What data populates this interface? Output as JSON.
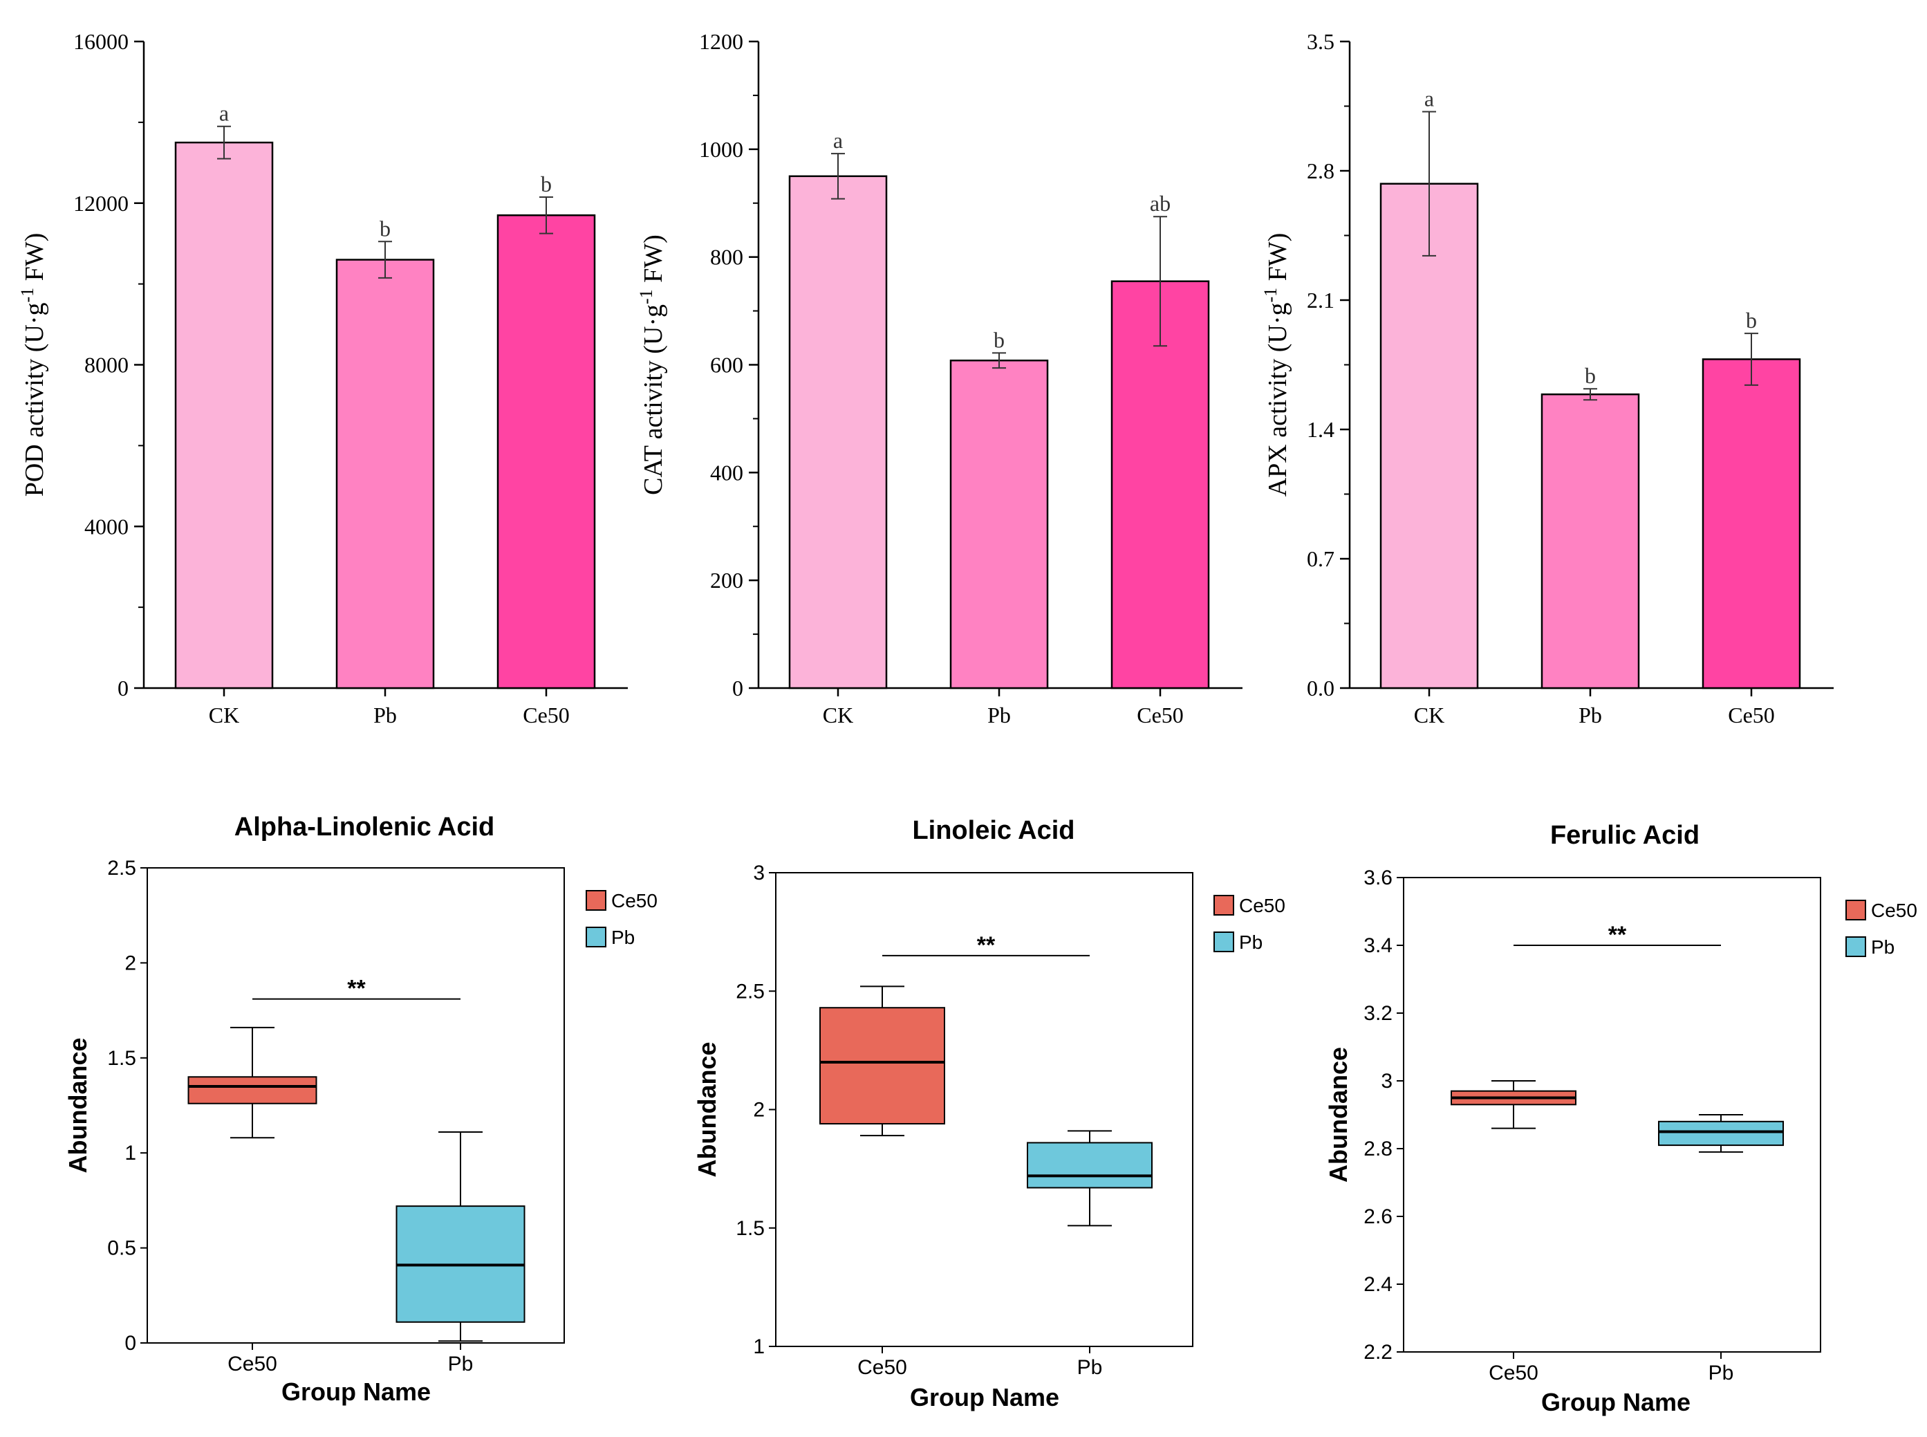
{
  "chart_data": [
    {
      "type": "bar",
      "title": "",
      "xlabel": "",
      "ylabel_prefix": "POD activity (U·g",
      "ylabel_sup": "-1",
      "ylabel_suffix": " FW)",
      "categories": [
        "CK",
        "Pb",
        "Ce50"
      ],
      "values": [
        13500,
        10600,
        11700
      ],
      "errors": [
        400,
        450,
        450
      ],
      "letters": [
        "a",
        "b",
        "b"
      ],
      "yticks": [
        "0",
        "4000",
        "8000",
        "12000",
        "16000"
      ],
      "ytick_values": [
        0,
        4000,
        8000,
        12000,
        16000
      ],
      "ylim": [
        0,
        16000
      ],
      "colors": [
        "#fcb3d9",
        "#ff82c2",
        "#ff44a3"
      ]
    },
    {
      "type": "bar",
      "title": "",
      "xlabel": "",
      "ylabel_prefix": "CAT activity (U·g",
      "ylabel_sup": "-1",
      "ylabel_suffix": " FW)",
      "categories": [
        "CK",
        "Pb",
        "Ce50"
      ],
      "values": [
        950,
        608,
        755
      ],
      "errors": [
        42,
        14,
        120
      ],
      "letters": [
        "a",
        "b",
        "ab"
      ],
      "yticks": [
        "0",
        "200",
        "400",
        "600",
        "800",
        "1000",
        "1200"
      ],
      "ytick_values": [
        0,
        200,
        400,
        600,
        800,
        1000,
        1200
      ],
      "ylim": [
        0,
        1200
      ],
      "colors": [
        "#fcb3d9",
        "#ff82c2",
        "#ff44a3"
      ]
    },
    {
      "type": "bar",
      "title": "",
      "xlabel": "",
      "ylabel_prefix": "APX activity (U·g",
      "ylabel_sup": "-1",
      "ylabel_suffix": " FW)",
      "categories": [
        "CK",
        "Pb",
        "Ce50"
      ],
      "values": [
        2.73,
        1.59,
        1.78
      ],
      "errors": [
        0.39,
        0.03,
        0.14
      ],
      "letters": [
        "a",
        "b",
        "b"
      ],
      "yticks": [
        "0.0",
        "0.7",
        "1.4",
        "2.1",
        "2.8",
        "3.5"
      ],
      "ytick_values": [
        0,
        0.7,
        1.4,
        2.1,
        2.8,
        3.5
      ],
      "ylim": [
        0,
        3.5
      ],
      "colors": [
        "#fcb3d9",
        "#ff82c2",
        "#ff44a3"
      ]
    },
    {
      "type": "box",
      "title": "Alpha-Linolenic Acid",
      "xlabel": "Group Name",
      "ylabel": "Abundance",
      "categories": [
        "Ce50",
        "Pb"
      ],
      "boxes": [
        {
          "min": 1.08,
          "q1": 1.26,
          "median": 1.35,
          "q3": 1.4,
          "max": 1.66
        },
        {
          "min": 0.01,
          "q1": 0.11,
          "median": 0.41,
          "q3": 0.72,
          "max": 1.11
        }
      ],
      "significance": "**",
      "sig_y": 1.81,
      "yticks": [
        "0",
        "0.5",
        "1",
        "1.5",
        "2",
        "2.5"
      ],
      "ytick_values": [
        0,
        0.5,
        1,
        1.5,
        2,
        2.5
      ],
      "ylim": [
        0,
        2.5
      ],
      "legend": [
        "Ce50",
        "Pb"
      ],
      "colors": [
        "#e8695a",
        "#6ec8dc"
      ]
    },
    {
      "type": "box",
      "title": "Linoleic Acid",
      "xlabel": "Group Name",
      "ylabel": "Abundance",
      "categories": [
        "Ce50",
        "Pb"
      ],
      "boxes": [
        {
          "min": 1.89,
          "q1": 1.94,
          "median": 2.2,
          "q3": 2.43,
          "max": 2.52
        },
        {
          "min": 1.51,
          "q1": 1.67,
          "median": 1.72,
          "q3": 1.86,
          "max": 1.91
        }
      ],
      "significance": "**",
      "sig_y": 2.65,
      "yticks": [
        "1",
        "1.5",
        "2",
        "2.5",
        "3"
      ],
      "ytick_values": [
        1,
        1.5,
        2,
        2.5,
        3
      ],
      "ylim": [
        1,
        3
      ],
      "legend": [
        "Ce50",
        "Pb"
      ],
      "colors": [
        "#e8695a",
        "#6ec8dc"
      ]
    },
    {
      "type": "box",
      "title": "Ferulic Acid",
      "xlabel": "Group Name",
      "ylabel": "Abundance",
      "categories": [
        "Ce50",
        "Pb"
      ],
      "boxes": [
        {
          "min": 2.86,
          "q1": 2.93,
          "median": 2.95,
          "q3": 2.97,
          "max": 3.0
        },
        {
          "min": 2.79,
          "q1": 2.81,
          "median": 2.85,
          "q3": 2.88,
          "max": 2.9
        }
      ],
      "significance": "**",
      "sig_y": 3.4,
      "yticks": [
        "2.2",
        "2.4",
        "2.6",
        "2.8",
        "3",
        "3.2",
        "3.4",
        "3.6"
      ],
      "ytick_values": [
        2.2,
        2.4,
        2.6,
        2.8,
        3.0,
        3.2,
        3.4,
        3.6
      ],
      "ylim": [
        2.2,
        3.6
      ],
      "legend": [
        "Ce50",
        "Pb"
      ],
      "colors": [
        "#e8695a",
        "#6ec8dc"
      ]
    }
  ]
}
